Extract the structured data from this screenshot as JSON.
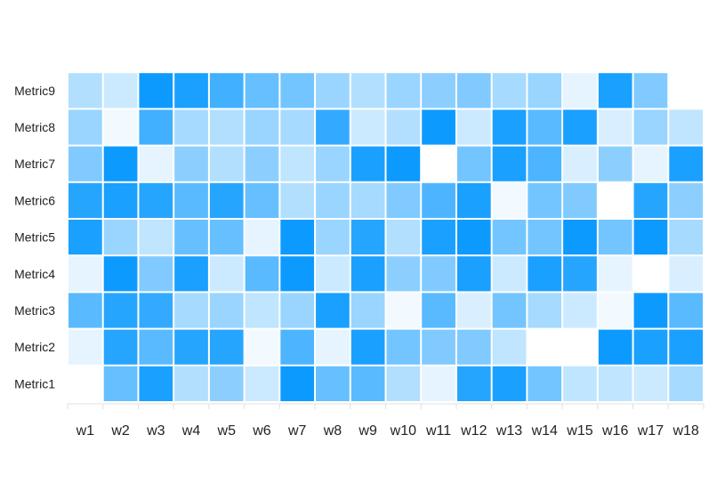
{
  "colors": {
    "low": "#ffffff",
    "high": "#0095ff",
    "axis": "#e0e0e0",
    "text": "#222222"
  },
  "chart_data": {
    "type": "heatmap",
    "x_categories": [
      "w1",
      "w2",
      "w3",
      "w4",
      "w5",
      "w6",
      "w7",
      "w8",
      "w9",
      "w10",
      "w11",
      "w12",
      "w13",
      "w14",
      "w15",
      "w16",
      "w17",
      "w18"
    ],
    "y_categories": [
      "Metric1",
      "Metric2",
      "Metric3",
      "Metric4",
      "Metric5",
      "Metric6",
      "Metric7",
      "Metric8",
      "Metric9"
    ],
    "value_range": [
      0,
      1
    ],
    "values": [
      [
        0.0,
        0.6,
        0.9,
        0.3,
        0.45,
        0.2,
        0.95,
        0.6,
        0.65,
        0.3,
        0.1,
        0.85,
        0.9,
        0.55,
        0.25,
        0.25,
        0.2,
        0.35
      ],
      [
        0.1,
        0.85,
        0.65,
        0.85,
        0.85,
        0.05,
        0.7,
        0.1,
        0.9,
        0.55,
        0.5,
        0.5,
        0.25,
        0.0,
        0.0,
        0.95,
        0.9,
        0.9
      ],
      [
        0.65,
        0.85,
        0.8,
        0.35,
        0.4,
        0.25,
        0.4,
        0.9,
        0.4,
        0.05,
        0.65,
        0.15,
        0.55,
        0.35,
        0.2,
        0.05,
        0.95,
        0.65
      ],
      [
        0.1,
        0.95,
        0.5,
        0.9,
        0.2,
        0.65,
        0.95,
        0.2,
        0.9,
        0.45,
        0.5,
        0.9,
        0.2,
        0.9,
        0.85,
        0.1,
        0.0,
        0.15
      ],
      [
        0.9,
        0.4,
        0.25,
        0.6,
        0.6,
        0.1,
        0.95,
        0.4,
        0.85,
        0.3,
        0.9,
        0.95,
        0.55,
        0.55,
        0.95,
        0.55,
        0.95,
        0.35
      ],
      [
        0.85,
        0.9,
        0.85,
        0.65,
        0.85,
        0.6,
        0.3,
        0.4,
        0.35,
        0.5,
        0.7,
        0.9,
        0.05,
        0.55,
        0.5,
        0.0,
        0.85,
        0.45
      ],
      [
        0.5,
        0.95,
        0.1,
        0.45,
        0.3,
        0.45,
        0.25,
        0.4,
        0.9,
        0.95,
        0.0,
        0.55,
        0.9,
        0.7,
        0.15,
        0.45,
        0.1,
        0.9
      ],
      [
        0.4,
        0.05,
        0.75,
        0.35,
        0.3,
        0.4,
        0.35,
        0.8,
        0.2,
        0.3,
        0.95,
        0.2,
        0.9,
        0.65,
        0.9,
        0.15,
        0.4,
        0.25
      ],
      [
        0.3,
        0.2,
        0.95,
        0.9,
        0.75,
        0.6,
        0.55,
        0.4,
        0.3,
        0.4,
        0.45,
        0.5,
        0.35,
        0.4,
        0.1,
        0.9,
        0.5,
        null
      ]
    ]
  }
}
